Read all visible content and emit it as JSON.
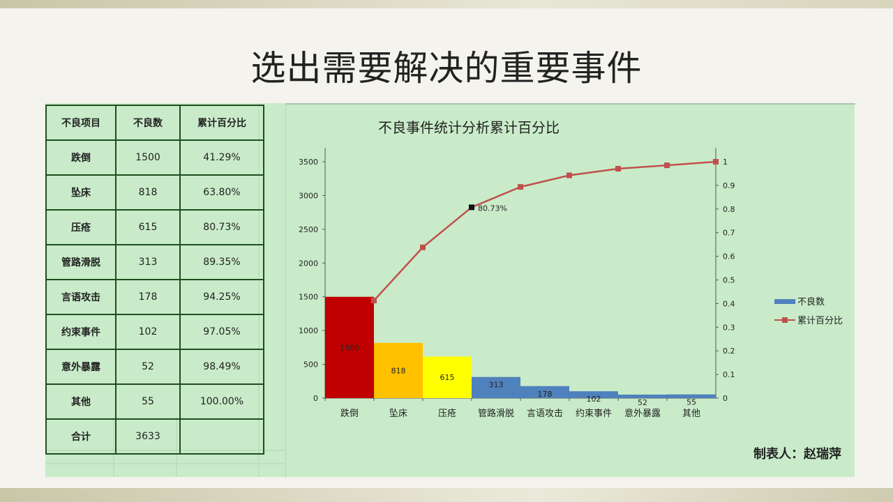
{
  "slide": {
    "title": "选出需要解决的重要事件"
  },
  "table": {
    "headers": [
      "不良项目",
      "不良数",
      "累计百分比"
    ],
    "rows": [
      [
        "跌倒",
        "1500",
        "41.29%"
      ],
      [
        "坠床",
        "818",
        "63.80%"
      ],
      [
        "压疮",
        "615",
        "80.73%"
      ],
      [
        "管路滑脱",
        "313",
        "89.35%"
      ],
      [
        "言语攻击",
        "178",
        "94.25%"
      ],
      [
        "约束事件",
        "102",
        "97.05%"
      ],
      [
        "意外暴露",
        "52",
        "98.49%"
      ],
      [
        "其他",
        "55",
        "100.00%"
      ],
      [
        "合计",
        "3633",
        ""
      ]
    ]
  },
  "chart_data": {
    "type": "bar",
    "title": "不良事件统计分析累计百分比",
    "categories": [
      "跌倒",
      "坠床",
      "压疮",
      "管路滑脱",
      "言语攻击",
      "约束事件",
      "意外暴露",
      "其他"
    ],
    "series": [
      {
        "name": "不良数",
        "type": "bar",
        "values": [
          1500,
          818,
          615,
          313,
          178,
          102,
          52,
          55
        ],
        "colors": [
          "#c00000",
          "#ffc000",
          "#ffff00",
          "#4f81bd",
          "#4f81bd",
          "#4f81bd",
          "#4f81bd",
          "#4f81bd"
        ]
      },
      {
        "name": "累计百分比",
        "type": "line",
        "axis": "right",
        "color": "#c0504d",
        "values": [
          0.4129,
          0.638,
          0.8073,
          0.8935,
          0.9425,
          0.9705,
          0.9849,
          1.0
        ]
      }
    ],
    "y_left": {
      "min": 0,
      "max": 3500,
      "ticks": [
        "0",
        "500",
        "1000",
        "1500",
        "2000",
        "2500",
        "3000",
        "3500"
      ]
    },
    "y_right": {
      "min": 0,
      "max": 1,
      "ticks": [
        "0",
        "0.1",
        "0.2",
        "0.3",
        "0.4",
        "0.5",
        "0.6",
        "0.7",
        "0.8",
        "0.9",
        "1"
      ]
    },
    "annotation": {
      "text": "80.73%",
      "category": "压疮"
    },
    "legend_position": "right",
    "grid": false,
    "author_note": "制表人：赵瑞萍"
  },
  "colors": {
    "panel_bg": "#c9ebc9",
    "table_border": "#1e4d1e",
    "legend_bar": "#4f81bd",
    "line": "#c0504d"
  }
}
